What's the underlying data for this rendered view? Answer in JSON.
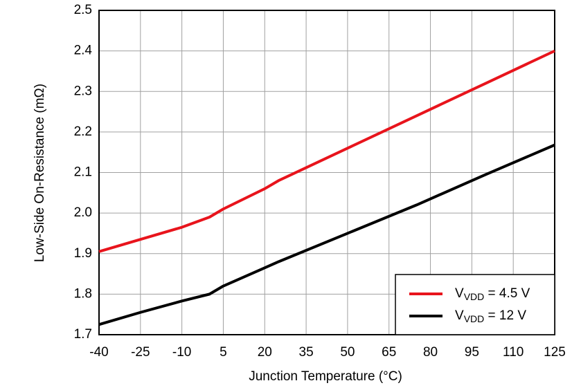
{
  "chart_data": {
    "type": "line",
    "xlabel": "Junction Temperature (°C)",
    "ylabel": "Low-Side On-Resistance (mΩ)",
    "x": [
      -40,
      -25,
      -10,
      0,
      5,
      20,
      25,
      50,
      75,
      100,
      125
    ],
    "series": [
      {
        "name": "VVDD = 4.5 V",
        "color": "#e8141c",
        "values": [
          1.905,
          1.935,
          1.965,
          1.99,
          2.01,
          2.06,
          2.08,
          2.16,
          2.24,
          2.32,
          2.4
        ]
      },
      {
        "name": "VVDD = 12 V",
        "color": "#000000",
        "values": [
          1.725,
          1.755,
          1.783,
          1.8,
          1.82,
          1.865,
          1.88,
          1.95,
          2.02,
          2.095,
          2.168
        ]
      }
    ],
    "xlim": [
      -40,
      125
    ],
    "xticks": [
      -40,
      -25,
      -10,
      5,
      20,
      35,
      50,
      65,
      80,
      95,
      110,
      125
    ],
    "ylim": [
      1.7,
      2.5
    ],
    "yticks": [
      1.7,
      1.8,
      1.9,
      {
        "value": 2,
        "label": "2.0"
      },
      2.1,
      2.2,
      2.3,
      2.4,
      2.5
    ],
    "grid": true,
    "legend": "lower right"
  }
}
